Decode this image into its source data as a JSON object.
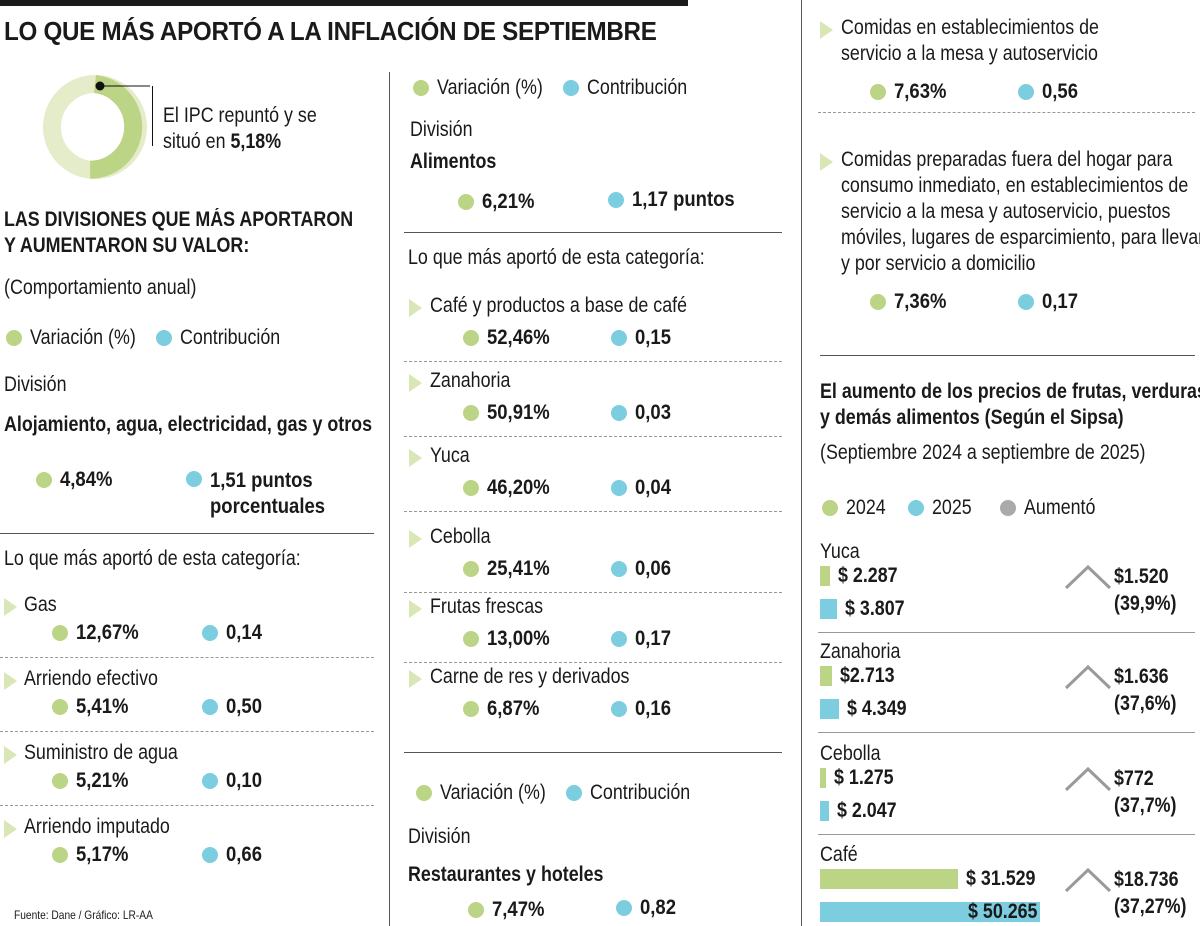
{
  "title": "LO QUE MÁS APORTÓ A LA INFLACIÓN DE SEPTIEMBRE",
  "ipc": {
    "text": "El IPC repuntó y se",
    "text2": "situó en ",
    "value": "5,18%",
    "fraction": 0.0518
  },
  "divisions_heading": [
    "LAS DIVISIONES QUE MÁS APORTARON",
    "Y AUMENTARON SU VALOR:"
  ],
  "annual_note": "(Comportamiento anual)",
  "legend": {
    "variation": "Variación (%)",
    "contribution": "Contribución"
  },
  "division_label": "División",
  "category_heading": "Lo que más aportó de esta categoría:",
  "colors": {
    "green": "#bcd485",
    "blue": "#7ccde0",
    "gray": "#aaa"
  },
  "col1": {
    "division": "Alojamiento, agua, electricidad, gas y otros",
    "variation": "4,84%",
    "contribution": [
      "1,51 puntos",
      "porcentuales"
    ],
    "items": [
      {
        "name": "Gas",
        "variation": "12,67%",
        "contribution": "0,14"
      },
      {
        "name": "Arriendo efectivo",
        "variation": "5,41%",
        "contribution": "0,50"
      },
      {
        "name": "Suministro de agua",
        "variation": "5,21%",
        "contribution": "0,10"
      },
      {
        "name": "Arriendo imputado",
        "variation": "5,17%",
        "contribution": "0,66"
      }
    ]
  },
  "col2": {
    "division": "Alimentos",
    "variation": "6,21%",
    "contribution": "1,17 puntos",
    "items": [
      {
        "name": "Café y productos a base de café",
        "variation": "52,46%",
        "contribution": "0,15"
      },
      {
        "name": "Zanahoria",
        "variation": "50,91%",
        "contribution": "0,03"
      },
      {
        "name": "Yuca",
        "variation": "46,20%",
        "contribution": "0,04"
      },
      {
        "name": "Cebolla",
        "variation": "25,41%",
        "contribution": "0,06"
      },
      {
        "name": "Frutas frescas",
        "variation": "13,00%",
        "contribution": "0,17"
      },
      {
        "name": "Carne de res y derivados",
        "variation": "6,87%",
        "contribution": "0,16"
      }
    ],
    "division2": "Restaurantes y hoteles",
    "variation2": "7,47%",
    "contribution2": "0,82"
  },
  "col3": {
    "items": [
      {
        "lines": [
          "Comidas en establecimientos de",
          "servicio a la mesa y autoservicio"
        ],
        "variation": "7,63%",
        "contribution": "0,56"
      },
      {
        "lines": [
          "Comidas preparadas fuera del hogar para",
          "consumo inmediato, en establecimientos de",
          "servicio a la mesa y autoservicio,  puestos",
          "móviles, lugares de esparcimiento, para llevar",
          "y por servicio a domicilio"
        ],
        "variation": "7,36%",
        "contribution": "0,17"
      }
    ]
  },
  "chart_data": {
    "type": "bar",
    "title": "El aumento de los precios de frutas, verduras y demás alimentos (Según el Sipsa)",
    "title_lines": [
      "El aumento de los precios de frutas, verduras",
      "y demás alimentos (Según el Sipsa)"
    ],
    "subtitle": "(Septiembre 2024 a septiembre de 2025)",
    "legend": [
      "2024",
      "2025",
      "Aumentó"
    ],
    "categories": [
      "Yuca",
      "Zanahoria",
      "Cebolla",
      "Café"
    ],
    "series": [
      {
        "name": "2024",
        "values": [
          2287,
          2713,
          1275,
          31529
        ],
        "labels": [
          "$ 2.287",
          "$2.713",
          "$ 1.275",
          "$ 31.529"
        ]
      },
      {
        "name": "2025",
        "values": [
          3807,
          4349,
          2047,
          50265
        ],
        "labels": [
          "$ 3.807",
          "$ 4.349",
          "$ 2.047",
          "$ 50.265"
        ]
      }
    ],
    "increase": [
      {
        "value": "$1.520",
        "pct": "(39,9%)"
      },
      {
        "value": "$1.636",
        "pct": "(37,6%)"
      },
      {
        "value": "$772",
        "pct": "(37,7%)"
      },
      {
        "value": "$18.736",
        "pct": "(37,27%)"
      }
    ]
  },
  "source": "Fuente: Dane / Gráfico: LR-AA"
}
